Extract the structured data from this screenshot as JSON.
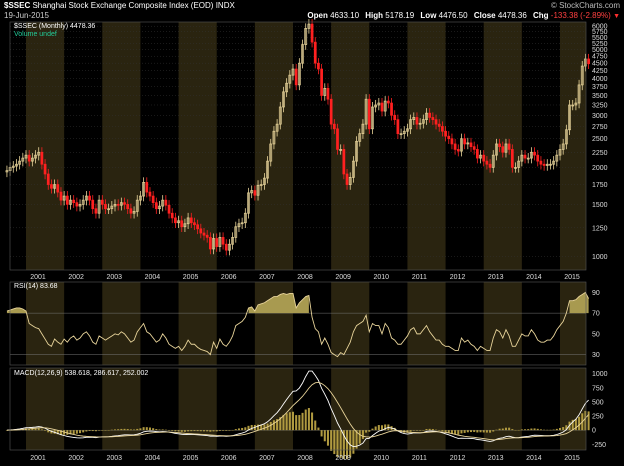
{
  "header": {
    "title_symbol": "$SSEC",
    "title_name": "Shanghai Stock Exchange Composite Index (EOD)",
    "title_exchange": "INDX",
    "date": "19-Jun-2015",
    "logo": "© StockCharts.com",
    "open_label": "Open",
    "open_value": "4633.10",
    "high_label": "High",
    "high_value": "5178.19",
    "low_label": "Low",
    "low_value": "4476.50",
    "close_label": "Close",
    "close_value": "4478.36",
    "chg_label": "Chg",
    "chg_value": "-133.38 (-2.89%)",
    "chg_icon": "down-arrow-icon"
  },
  "legends": {
    "price": "$SSEC (Monthly) 4478.36",
    "volume": "Volume undef",
    "rsi": "RSI(14) 83.68",
    "macd": "MACD(12,26,9) 538.618, 286.617, 252.002"
  },
  "colors": {
    "up": "#e8d49a",
    "down": "#ff2020",
    "band": "#2a2410",
    "rsi_fill": "#a89a50",
    "macd_hist": "#b09a40",
    "line": "#ffffff"
  },
  "chart_data": [
    {
      "type": "candlestick",
      "name": "price",
      "x_axis": [
        "2001",
        "2002",
        "2003",
        "2004",
        "2005",
        "2006",
        "2007",
        "2008",
        "2009",
        "2010",
        "2011",
        "2012",
        "2013",
        "2014",
        "2015"
      ],
      "ylim": [
        900,
        6200
      ],
      "y_ticks": [
        1000,
        1250,
        1500,
        1750,
        2000,
        2250,
        2500,
        2750,
        3000,
        3250,
        3500,
        3750,
        4000,
        4250,
        4500,
        4750,
        5000,
        5250,
        5500,
        5750,
        6000
      ],
      "close_series_start": "2000-07",
      "closes": [
        1950,
        2000,
        2020,
        2050,
        2100,
        2150,
        2200,
        2100,
        2150,
        2200,
        2250,
        2050,
        1900,
        1750,
        1700,
        1750,
        1650,
        1550,
        1600,
        1500,
        1550,
        1520,
        1480,
        1500,
        1550,
        1600,
        1550,
        1450,
        1400,
        1550,
        1500,
        1450,
        1450,
        1480,
        1500,
        1490,
        1520,
        1500,
        1450,
        1400,
        1420,
        1550,
        1600,
        1780,
        1650,
        1600,
        1520,
        1450,
        1480,
        1550,
        1490,
        1400,
        1350,
        1300,
        1320,
        1260,
        1290,
        1350,
        1300,
        1280,
        1240,
        1200,
        1180,
        1160,
        1060,
        1150,
        1080,
        1160,
        1100,
        1050,
        1100,
        1160,
        1260,
        1290,
        1300,
        1400,
        1640,
        1670,
        1610,
        1740,
        1750,
        1840,
        2100,
        2400,
        2650,
        2800,
        3200,
        3600,
        3850,
        4100,
        4300,
        3800,
        4500,
        5200,
        5900,
        6100,
        5300,
        4500,
        4300,
        3500,
        3700,
        3400,
        2800,
        2700,
        2300,
        2300,
        1900,
        1750,
        1850,
        2100,
        2450,
        2600,
        2800,
        3400,
        2700,
        3200,
        3250,
        3300,
        3100,
        3350,
        3300,
        3000,
        2900,
        2600,
        2600,
        2650,
        2700,
        2900,
        2950,
        2800,
        2820,
        2900,
        3050,
        2950,
        2900,
        2800,
        2750,
        2650,
        2550,
        2500,
        2400,
        2300,
        2270,
        2500,
        2400,
        2420,
        2350,
        2300,
        2150,
        2200,
        2100,
        2050,
        2000,
        2200,
        2400,
        2350,
        2250,
        2400,
        2300,
        2000,
        2000,
        2100,
        2200,
        2150,
        2150,
        2250,
        2200,
        2100,
        2050,
        2030,
        2050,
        2050,
        2100,
        2200,
        2300,
        2400,
        2680,
        3250,
        3250,
        3300,
        3800,
        4400,
        4650,
        4480
      ]
    },
    {
      "type": "line",
      "name": "RSI(14)",
      "ylim": [
        20,
        100
      ],
      "y_ticks": [
        30,
        50,
        70,
        90
      ],
      "reference_lines": [
        30,
        70
      ],
      "values": [
        72,
        73,
        74,
        75,
        75,
        74,
        72,
        60,
        58,
        56,
        55,
        50,
        45,
        40,
        38,
        45,
        42,
        40,
        45,
        42,
        46,
        48,
        44,
        46,
        50,
        52,
        48,
        42,
        40,
        48,
        46,
        44,
        46,
        48,
        50,
        49,
        52,
        50,
        46,
        42,
        44,
        52,
        56,
        60,
        52,
        50,
        46,
        42,
        44,
        50,
        46,
        40,
        38,
        36,
        38,
        34,
        38,
        44,
        40,
        40,
        37,
        35,
        34,
        33,
        30,
        42,
        36,
        45,
        40,
        38,
        42,
        48,
        58,
        60,
        62,
        66,
        75,
        76,
        72,
        78,
        79,
        80,
        82,
        84,
        86,
        86,
        88,
        89,
        88,
        89,
        89,
        75,
        80,
        83,
        86,
        87,
        66,
        55,
        52,
        40,
        46,
        40,
        32,
        30,
        28,
        32,
        30,
        36,
        42,
        52,
        58,
        60,
        62,
        68,
        52,
        60,
        58,
        58,
        50,
        60,
        56,
        46,
        44,
        40,
        40,
        44,
        48,
        54,
        56,
        50,
        50,
        54,
        58,
        52,
        48,
        44,
        44,
        40,
        38,
        38,
        36,
        34,
        34,
        46,
        42,
        44,
        40,
        38,
        34,
        38,
        36,
        34,
        34,
        46,
        54,
        52,
        46,
        54,
        48,
        38,
        38,
        44,
        50,
        48,
        48,
        54,
        50,
        44,
        42,
        42,
        44,
        44,
        48,
        54,
        58,
        62,
        70,
        82,
        82,
        83,
        86,
        88,
        90,
        84
      ]
    },
    {
      "type": "macd",
      "name": "MACD(12,26,9)",
      "ylim": [
        -350,
        1100
      ],
      "y_ticks": [
        -250,
        0,
        250,
        500,
        750,
        1000
      ],
      "values_note": "MACD line, signal line and histogram derived from monthly closes; last values 538.618, 286.617, 252.002"
    }
  ]
}
